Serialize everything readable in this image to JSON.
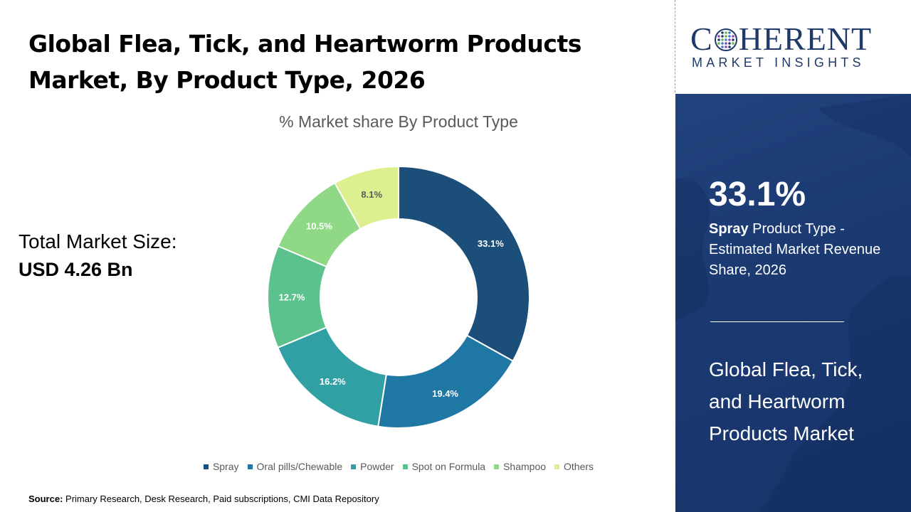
{
  "page": {
    "title_line1": "Global Flea, Tick, and Heartworm Products",
    "title_line2": "Market, By Product Type, 2026",
    "total_label": "Total Market Size:",
    "total_value": "USD 4.26 Bn",
    "source_label": "Source:",
    "source_text": " Primary Research, Desk Research, Paid subscriptions, CMI Data Repository"
  },
  "logo": {
    "main_pre": "C",
    "main_post": "HERENT",
    "sub": "MARKET INSIGHTS"
  },
  "sidebar": {
    "highlight_value": "33.1%",
    "highlight_bold": "Spray",
    "highlight_rest": " Product Type - Estimated Market Revenue Share, 2026",
    "market_name": "Global Flea, Tick, and Heartworm Products Market"
  },
  "chart_data": {
    "type": "pie",
    "title": "% Market share By Product Type",
    "donut": true,
    "legend_position": "bottom",
    "categories": [
      "Spray",
      "Oral pills/Chewable",
      "Powder",
      "Spot on Formula",
      "Shampoo",
      "Others"
    ],
    "values": [
      33.1,
      19.4,
      16.2,
      12.7,
      10.5,
      8.1
    ],
    "data_labels": [
      "33.1%",
      "19.4%",
      "16.2%",
      "12.7%",
      "10.5%",
      "8.1%"
    ],
    "colors": [
      "#1b4f7a",
      "#1f77a4",
      "#30a0a4",
      "#5bc28e",
      "#8fd886",
      "#dcf090"
    ],
    "label_colors": [
      "#ffffff",
      "#ffffff",
      "#ffffff",
      "#ffffff",
      "#ffffff",
      "#595959"
    ]
  },
  "colors": {
    "brand_navy": "#1f3a68",
    "panel_bg": "#1b3a72"
  }
}
